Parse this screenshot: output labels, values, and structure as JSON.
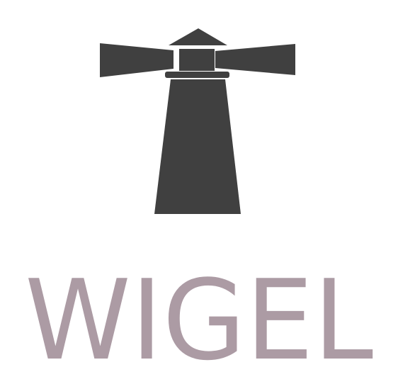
{
  "brand": {
    "name": "WIGEL",
    "icon": "lighthouse-icon",
    "colors": {
      "icon": "#404040",
      "wordmark": "#ac9ba4",
      "background": "#ffffff"
    }
  }
}
